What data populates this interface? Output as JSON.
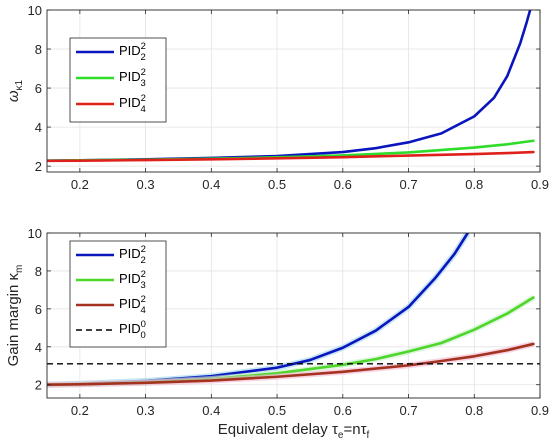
{
  "chart_data": [
    {
      "type": "line",
      "ylabel": "ω_κ1",
      "ylabel_main": "ω",
      "ylabel_sub": "κ1",
      "xlabel": "",
      "xlim": [
        0.15,
        0.9
      ],
      "ylim": [
        1.7,
        10
      ],
      "xticks": [
        0.2,
        0.3,
        0.4,
        0.5,
        0.6,
        0.7,
        0.8,
        0.9
      ],
      "xtick_labels": [
        "0.2",
        "0.3",
        "0.4",
        "0.5",
        "0.6",
        "0.7",
        "0.8",
        "0.9"
      ],
      "yticks": [
        2,
        4,
        6,
        8,
        10
      ],
      "ytick_labels": [
        "2",
        "4",
        "6",
        "8",
        "10"
      ],
      "grid": true,
      "legend_position": "top-left",
      "series": [
        {
          "name": "PID",
          "sup": "2",
          "sub": "2",
          "color": "#0b15bd",
          "x": [
            0.15,
            0.2,
            0.3,
            0.4,
            0.5,
            0.6,
            0.65,
            0.7,
            0.75,
            0.8,
            0.83,
            0.85,
            0.87,
            0.88,
            0.885
          ],
          "y": [
            2.28,
            2.3,
            2.35,
            2.42,
            2.52,
            2.72,
            2.92,
            3.22,
            3.68,
            4.55,
            5.5,
            6.6,
            8.3,
            9.4,
            10.0
          ]
        },
        {
          "name": "PID",
          "sup": "2",
          "sub": "3",
          "color": "#2edc2a",
          "x": [
            0.15,
            0.2,
            0.3,
            0.4,
            0.5,
            0.6,
            0.7,
            0.8,
            0.85,
            0.89
          ],
          "y": [
            2.28,
            2.3,
            2.33,
            2.38,
            2.45,
            2.55,
            2.7,
            2.95,
            3.12,
            3.3
          ]
        },
        {
          "name": "PID",
          "sup": "2",
          "sub": "4",
          "color": "#e0201b",
          "x": [
            0.15,
            0.2,
            0.3,
            0.4,
            0.5,
            0.6,
            0.7,
            0.8,
            0.85,
            0.89
          ],
          "y": [
            2.27,
            2.28,
            2.31,
            2.35,
            2.4,
            2.46,
            2.54,
            2.62,
            2.67,
            2.72
          ]
        }
      ]
    },
    {
      "type": "line",
      "ylabel": "Gain margin κ_m",
      "ylabel_main": "Gain margin κ",
      "ylabel_sub": "m",
      "xlabel": "Equivalent delay τ_e=nτ_f",
      "xlabel_main": "Equivalent delay ",
      "xlabel_tau1": "τ",
      "xlabel_sub1": "e",
      "xlabel_mid": "=n",
      "xlabel_tau2": "τ",
      "xlabel_sub2": "f",
      "xlim": [
        0.15,
        0.9
      ],
      "ylim": [
        1.3,
        10
      ],
      "xticks": [
        0.2,
        0.3,
        0.4,
        0.5,
        0.6,
        0.7,
        0.8,
        0.9
      ],
      "xtick_labels": [
        "0.2",
        "0.3",
        "0.4",
        "0.5",
        "0.6",
        "0.7",
        "0.8",
        "0.9"
      ],
      "yticks": [
        2,
        4,
        6,
        8,
        10
      ],
      "ytick_labels": [
        "2",
        "4",
        "6",
        "8",
        "10"
      ],
      "grid": true,
      "legend_position": "top-left",
      "series": [
        {
          "name": "PID",
          "sup": "2",
          "sub": "2",
          "color": "#0b15bd",
          "x": [
            0.15,
            0.2,
            0.3,
            0.4,
            0.5,
            0.55,
            0.6,
            0.65,
            0.7,
            0.74,
            0.77,
            0.79
          ],
          "y": [
            2.0,
            2.05,
            2.2,
            2.45,
            2.9,
            3.3,
            3.95,
            4.85,
            6.1,
            7.6,
            8.9,
            10.0
          ]
        },
        {
          "name": "PID",
          "sup": "2",
          "sub": "3",
          "color": "#4fd62a",
          "x": [
            0.15,
            0.2,
            0.3,
            0.4,
            0.5,
            0.6,
            0.65,
            0.7,
            0.75,
            0.8,
            0.85,
            0.89
          ],
          "y": [
            2.0,
            2.03,
            2.12,
            2.3,
            2.6,
            3.05,
            3.35,
            3.75,
            4.2,
            4.9,
            5.75,
            6.6
          ]
        },
        {
          "name": "PID",
          "sup": "2",
          "sub": "4",
          "color": "#a3331f",
          "x": [
            0.15,
            0.2,
            0.3,
            0.4,
            0.5,
            0.6,
            0.7,
            0.75,
            0.8,
            0.85,
            0.89
          ],
          "y": [
            2.0,
            2.02,
            2.1,
            2.22,
            2.42,
            2.68,
            3.02,
            3.25,
            3.5,
            3.82,
            4.15
          ]
        },
        {
          "name": "PID",
          "sup": "0",
          "sub": "0",
          "color": "#000000",
          "dashed": true,
          "x": [
            0.15,
            0.9
          ],
          "y": [
            3.1,
            3.1
          ]
        }
      ]
    }
  ]
}
